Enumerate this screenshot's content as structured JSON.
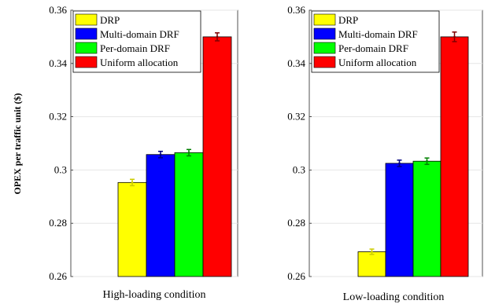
{
  "chart_data": {
    "type": "bar",
    "ylabel": "OPEX per traffic unit ($)",
    "ylim": [
      0.26,
      0.36
    ],
    "yticks": [
      0.26,
      0.28,
      0.3,
      0.32,
      0.34,
      0.36
    ],
    "ytick_labels": [
      "0.26",
      "0.28",
      "0.3",
      "0.32",
      "0.34",
      "0.36"
    ],
    "grid": true,
    "legend_position": "top-left",
    "legend": [
      {
        "name": "DRP",
        "color": "#ffff00"
      },
      {
        "name": "Multi-domain DRF",
        "color": "#0000ff"
      },
      {
        "name": "Per-domain DRF",
        "color": "#00ff00"
      },
      {
        "name": "Uniform allocation",
        "color": "#ff0000"
      }
    ],
    "errorbar_colors": [
      "#cccc00",
      "#000080",
      "#008000",
      "#800000"
    ],
    "panels": [
      {
        "xlabel": "High-loading condition",
        "values": [
          0.2953,
          0.3058,
          0.3065,
          0.35
        ],
        "errors": [
          0.0012,
          0.0012,
          0.0012,
          0.0015
        ]
      },
      {
        "xlabel": "Low-loading condition",
        "values": [
          0.2693,
          0.3025,
          0.3033,
          0.35
        ],
        "errors": [
          0.001,
          0.0012,
          0.0012,
          0.0018
        ]
      }
    ]
  }
}
